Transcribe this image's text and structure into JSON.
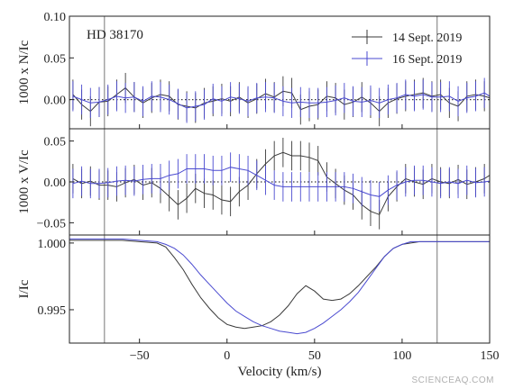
{
  "chart_data": {
    "type": "line",
    "star": "HD 38170",
    "xlabel": "Velocity (km/s)",
    "xlim": [
      -90,
      150
    ],
    "x_ticks": [
      -50,
      0,
      50,
      100,
      150
    ],
    "vertical_markers": [
      -70,
      120
    ],
    "legend_placement": "top-right",
    "series_names": [
      "14 Sept. 2019",
      "16 Sept. 2019"
    ],
    "series_colors": [
      "#3a3a3a",
      "#4a4ad0"
    ],
    "panels": [
      {
        "id": "N",
        "ylabel": "1000 x N/Ic",
        "ylim": [
          -0.035,
          0.1
        ],
        "y_ticks": [
          0.1,
          0.05,
          0.0
        ],
        "y_tick_labels": [
          "0.10",
          "0.05",
          "0.00"
        ],
        "zero_line": true,
        "error_bar": 0.018,
        "series": [
          {
            "name": "14 Sept. 2019",
            "x": [
              -88,
              -83,
              -78,
              -73,
              -68,
              -63,
              -58,
              -53,
              -48,
              -43,
              -38,
              -33,
              -28,
              -23,
              -18,
              -13,
              -8,
              -3,
              2,
              7,
              12,
              17,
              22,
              27,
              32,
              37,
              42,
              47,
              52,
              57,
              62,
              67,
              72,
              77,
              82,
              87,
              92,
              97,
              102,
              107,
              112,
              117,
              122,
              127,
              132,
              137,
              142,
              147,
              150
            ],
            "y": [
              0.006,
              -0.006,
              -0.014,
              -0.003,
              -0.002,
              0.006,
              0.014,
              0.003,
              -0.004,
              0.002,
              0.006,
              0.004,
              -0.006,
              -0.008,
              -0.01,
              -0.004,
              -0.002,
              0.001,
              -0.002,
              0.003,
              -0.004,
              0.001,
              0.007,
              0.003,
              0.01,
              0.008,
              -0.012,
              -0.008,
              -0.006,
              0.004,
              0.002,
              -0.006,
              -0.003,
              0.003,
              -0.004,
              -0.014,
              -0.004,
              0.001,
              0.004,
              0.006,
              0.008,
              0.004,
              0.006,
              -0.004,
              -0.008,
              0.004,
              0.006,
              0.004,
              0.002
            ]
          },
          {
            "name": "16 Sept. 2019",
            "x": [
              -88,
              -83,
              -78,
              -73,
              -68,
              -63,
              -58,
              -53,
              -48,
              -43,
              -38,
              -33,
              -28,
              -23,
              -18,
              -13,
              -8,
              -3,
              2,
              7,
              12,
              17,
              22,
              27,
              32,
              37,
              42,
              47,
              52,
              57,
              62,
              67,
              72,
              77,
              82,
              87,
              92,
              97,
              102,
              107,
              112,
              117,
              122,
              127,
              132,
              137,
              142,
              147,
              150
            ],
            "y": [
              0.004,
              0.0,
              -0.004,
              -0.003,
              0.0,
              0.004,
              0.002,
              0.003,
              -0.002,
              0.004,
              0.003,
              0.0,
              -0.005,
              -0.01,
              -0.008,
              -0.006,
              0.001,
              -0.002,
              0.003,
              0.001,
              -0.002,
              0.002,
              0.003,
              0.002,
              -0.002,
              -0.004,
              -0.003,
              -0.004,
              -0.004,
              -0.003,
              -0.001,
              0.002,
              -0.002,
              -0.003,
              -0.001,
              -0.004,
              0.0,
              0.002,
              0.006,
              0.004,
              0.006,
              0.003,
              0.003,
              0.004,
              -0.002,
              0.002,
              0.004,
              0.008,
              0.004
            ]
          }
        ]
      },
      {
        "id": "V",
        "ylabel": "1000 x V/Ic",
        "ylim": [
          -0.065,
          0.065
        ],
        "y_ticks": [
          0.05,
          0.0,
          -0.05
        ],
        "y_tick_labels": [
          "0.05",
          "0.00",
          "−0.05"
        ],
        "zero_line": true,
        "error_bar": 0.018,
        "series": [
          {
            "name": "14 Sept. 2019",
            "x": [
              -88,
              -83,
              -78,
              -73,
              -68,
              -63,
              -58,
              -53,
              -48,
              -43,
              -38,
              -33,
              -28,
              -23,
              -18,
              -13,
              -8,
              -3,
              2,
              7,
              12,
              17,
              22,
              27,
              32,
              37,
              42,
              47,
              52,
              57,
              62,
              67,
              72,
              77,
              82,
              87,
              92,
              97,
              102,
              107,
              112,
              117,
              122,
              127,
              132,
              137,
              142,
              147,
              150
            ],
            "y": [
              0.004,
              -0.002,
              0.001,
              -0.004,
              -0.004,
              -0.006,
              -0.001,
              0.003,
              -0.004,
              -0.001,
              -0.008,
              -0.018,
              -0.028,
              -0.02,
              -0.008,
              -0.014,
              -0.016,
              -0.022,
              -0.024,
              -0.012,
              -0.004,
              0.01,
              0.022,
              0.032,
              0.036,
              0.032,
              0.032,
              0.03,
              0.026,
              0.006,
              -0.002,
              -0.01,
              -0.016,
              -0.028,
              -0.036,
              -0.04,
              -0.018,
              -0.006,
              0.004,
              0.0,
              -0.003,
              0.004,
              0.0,
              -0.002,
              0.003,
              -0.003,
              0.0,
              0.004,
              0.008
            ]
          },
          {
            "name": "16 Sept. 2019",
            "x": [
              -88,
              -83,
              -78,
              -73,
              -68,
              -63,
              -58,
              -53,
              -48,
              -43,
              -38,
              -33,
              -28,
              -23,
              -18,
              -13,
              -8,
              -3,
              2,
              7,
              12,
              17,
              22,
              27,
              32,
              37,
              42,
              47,
              52,
              57,
              62,
              67,
              72,
              77,
              82,
              87,
              92,
              97,
              102,
              107,
              112,
              117,
              122,
              127,
              132,
              137,
              142,
              147,
              150
            ],
            "y": [
              -0.002,
              0.001,
              -0.002,
              -0.002,
              -0.001,
              0.001,
              0.002,
              0.001,
              0.003,
              0.004,
              0.004,
              0.008,
              0.01,
              0.016,
              0.016,
              0.016,
              0.014,
              0.014,
              0.018,
              0.016,
              0.014,
              0.008,
              0.002,
              -0.004,
              -0.006,
              -0.006,
              -0.006,
              -0.006,
              -0.006,
              -0.006,
              -0.006,
              -0.006,
              -0.008,
              -0.012,
              -0.016,
              -0.018,
              -0.01,
              -0.004,
              0.0,
              0.002,
              0.002,
              0.0,
              -0.002,
              0.0,
              -0.002,
              0.002,
              -0.001,
              0.0,
              0.001
            ]
          }
        ]
      },
      {
        "id": "I",
        "ylabel": "I/Ic",
        "ylim": [
          0.9925,
          1.0006
        ],
        "y_ticks": [
          1.0,
          0.995
        ],
        "y_tick_labels": [
          "1.000",
          "0.995"
        ],
        "zero_line": false,
        "series": [
          {
            "name": "14 Sept. 2019",
            "x": [
              -90,
              -80,
              -70,
              -60,
              -50,
              -40,
              -35,
              -30,
              -25,
              -20,
              -15,
              -10,
              -5,
              0,
              5,
              10,
              15,
              20,
              25,
              30,
              35,
              40,
              45,
              50,
              55,
              60,
              65,
              70,
              75,
              80,
              85,
              90,
              95,
              100,
              105,
              110,
              120,
              130,
              140,
              150
            ],
            "y": [
              1.0002,
              1.0002,
              1.0002,
              1.0002,
              1.0001,
              1.0,
              0.9997,
              0.9989,
              0.998,
              0.9969,
              0.9959,
              0.9951,
              0.9944,
              0.9939,
              0.9937,
              0.9936,
              0.9937,
              0.9938,
              0.9941,
              0.9946,
              0.9953,
              0.9962,
              0.9968,
              0.9964,
              0.9958,
              0.9957,
              0.9958,
              0.9962,
              0.9968,
              0.9975,
              0.9982,
              0.999,
              0.9996,
              0.9999,
              1.0,
              1.0001,
              1.0001,
              1.0001,
              1.0001,
              1.0001
            ]
          },
          {
            "name": "16 Sept. 2019",
            "x": [
              -90,
              -80,
              -70,
              -60,
              -50,
              -40,
              -35,
              -30,
              -25,
              -20,
              -15,
              -10,
              -5,
              0,
              5,
              10,
              15,
              20,
              25,
              30,
              35,
              40,
              45,
              50,
              55,
              60,
              65,
              70,
              75,
              80,
              85,
              90,
              95,
              100,
              105,
              110,
              120,
              130,
              140,
              150
            ],
            "y": [
              1.0003,
              1.0003,
              1.0003,
              1.0003,
              1.0002,
              1.0001,
              0.9999,
              0.9996,
              0.9991,
              0.9984,
              0.9976,
              0.9969,
              0.9962,
              0.9955,
              0.9949,
              0.9945,
              0.9941,
              0.9938,
              0.9936,
              0.9934,
              0.9933,
              0.9932,
              0.9933,
              0.9936,
              0.994,
              0.9945,
              0.995,
              0.9956,
              0.9963,
              0.9972,
              0.9981,
              0.999,
              0.9996,
              0.9999,
              1.0001,
              1.0001,
              1.0001,
              1.0001,
              1.0001,
              1.0001
            ]
          }
        ]
      }
    ]
  },
  "watermark": "SCIENCEAQ.COM"
}
